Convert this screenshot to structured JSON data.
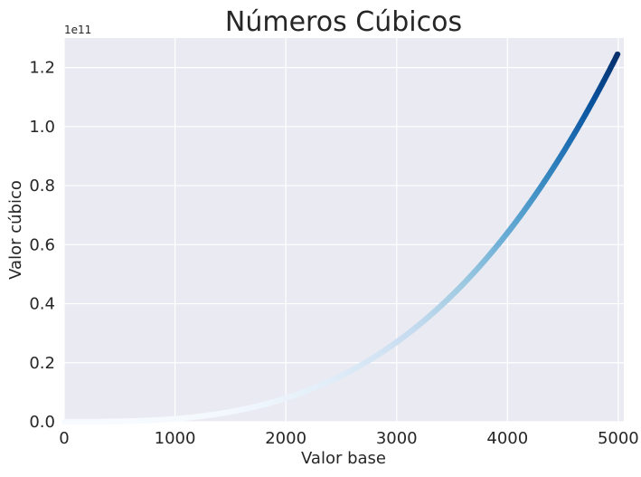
{
  "chart_data": {
    "type": "scatter",
    "title": "Números Cúbicos",
    "xlabel": "Valor base",
    "ylabel": "Valor cúbico",
    "y_offset_label": "1e11",
    "xlim": [
      0,
      5050
    ],
    "ylim": [
      0,
      1.3
    ],
    "y_scale_factor": 100000000000,
    "x_ticks": [
      0,
      1000,
      2000,
      3000,
      4000,
      5000
    ],
    "x_tick_labels": [
      "0",
      "1000",
      "2000",
      "3000",
      "4000",
      "5000"
    ],
    "y_ticks": [
      0.0,
      0.2,
      0.4,
      0.6,
      0.8,
      1.0,
      1.2
    ],
    "y_tick_labels": [
      "0.0",
      "0.2",
      "0.4",
      "0.6",
      "0.8",
      "1.0",
      "1.2"
    ],
    "x_range": [
      1,
      5000
    ],
    "formula": "y = x^3",
    "colormap": "Blues",
    "grid": true,
    "colors": {
      "plot_background": "#eaeaf2",
      "grid": "#ffffff",
      "text": "#262626",
      "colormap_stops": [
        "#f7fbff",
        "#deebf7",
        "#c6dbef",
        "#9ecae1",
        "#6baed6",
        "#4292c6",
        "#2171b5",
        "#08519c",
        "#08306b"
      ]
    }
  }
}
